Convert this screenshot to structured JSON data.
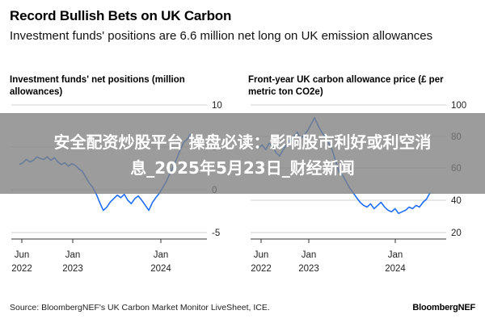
{
  "header": {
    "title": "Record Bullish Bets on UK Carbon",
    "subtitle": "Investment funds' positions are 6.6 million net long on UK emission allowances"
  },
  "chart_data": [
    {
      "type": "line",
      "title": "Investment funds' net positions (million allowances)",
      "y_ticks": [
        "10",
        "5",
        "0",
        "-5"
      ],
      "ylim": [
        -5,
        10
      ],
      "x_ticks": [
        {
          "month": "Jun",
          "year": "2022"
        },
        {
          "month": "Jan",
          "year": "2023"
        },
        {
          "month": "Jan",
          "year": "2024"
        }
      ],
      "series": [
        {
          "name": "net positions",
          "color": "#1f6ef5",
          "values": [
            3,
            3.2,
            3.6,
            3.3,
            3.5,
            3.9,
            3.7,
            3.6,
            3.9,
            3.5,
            3.8,
            3.3,
            3.0,
            3.2,
            2.8,
            3.1,
            2.9,
            2.5,
            2.2,
            1.5,
            0.8,
            0.3,
            -0.5,
            -1.5,
            -2.4,
            -2.0,
            -1.4,
            -1.0,
            -0.6,
            -0.9,
            -0.5,
            -1.2,
            -1.6,
            -1.0,
            -0.7,
            -1.2,
            -1.8,
            -2.4,
            -1.5,
            -0.9,
            -0.4,
            0.3,
            1.0,
            1.9,
            2.8,
            3.7,
            4.7,
            5.6,
            6.0,
            6.6
          ]
        }
      ]
    },
    {
      "type": "line",
      "title": "Front-year UK carbon allowance price (£ per metric ton CO2e)",
      "y_ticks": [
        "100",
        "80",
        "60",
        "40",
        "20"
      ],
      "ylim": [
        20,
        100
      ],
      "x_ticks": [
        {
          "month": "Jun",
          "year": "2022"
        },
        {
          "month": "Jan",
          "year": "2023"
        },
        {
          "month": "Jan",
          "year": "2024"
        }
      ],
      "series": [
        {
          "name": "price",
          "color": "#1f6ef5",
          "values": [
            73,
            75,
            72,
            76,
            74,
            70,
            68,
            72,
            75,
            78,
            80,
            83,
            79,
            81,
            84,
            88,
            92,
            87,
            83,
            80,
            76,
            72,
            65,
            58,
            56,
            52,
            48,
            45,
            42,
            39,
            37,
            36,
            38,
            35,
            37,
            39,
            36,
            34,
            33,
            35,
            32,
            33,
            34,
            36,
            35,
            37,
            36,
            39,
            41,
            45
          ]
        }
      ]
    }
  ],
  "overlay": {
    "line1": "安全配资炒股平台 操盘必读：影响股市利好或利空消",
    "line2": "息_2025年5月23日_财经新闻"
  },
  "footer": {
    "source": "Source: BloombergNEF's UK Carbon Market Monitor LiveSheet, ICE.",
    "brand": "BloombergNEF"
  }
}
